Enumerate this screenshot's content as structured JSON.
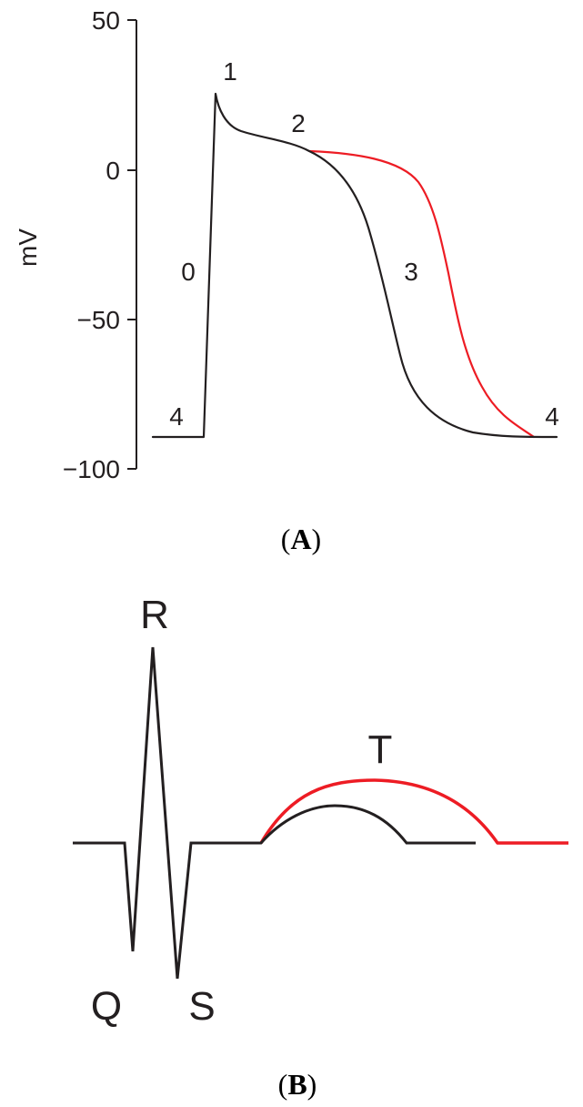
{
  "panel_a": {
    "y_axis_label": "mV",
    "y_ticks": [
      {
        "value": 50,
        "label": "50"
      },
      {
        "value": 0,
        "label": "0"
      },
      {
        "value": -50,
        "label": "−50"
      },
      {
        "value": -100,
        "label": "−100"
      }
    ],
    "phase_labels": {
      "phase_0": "0",
      "phase_1": "1",
      "phase_2": "2",
      "phase_3": "3",
      "phase_4_start": "4",
      "phase_4_end": "4"
    },
    "caption_open": "(",
    "caption_letter": "A",
    "caption_close": ")"
  },
  "panel_b": {
    "wave_labels": {
      "q": "Q",
      "r": "R",
      "s": "S",
      "t": "T"
    },
    "caption_open": "(",
    "caption_letter": "B",
    "caption_close": ")"
  },
  "colors": {
    "normal_trace": "#231f20",
    "prolonged_trace": "#ed1c24"
  }
}
